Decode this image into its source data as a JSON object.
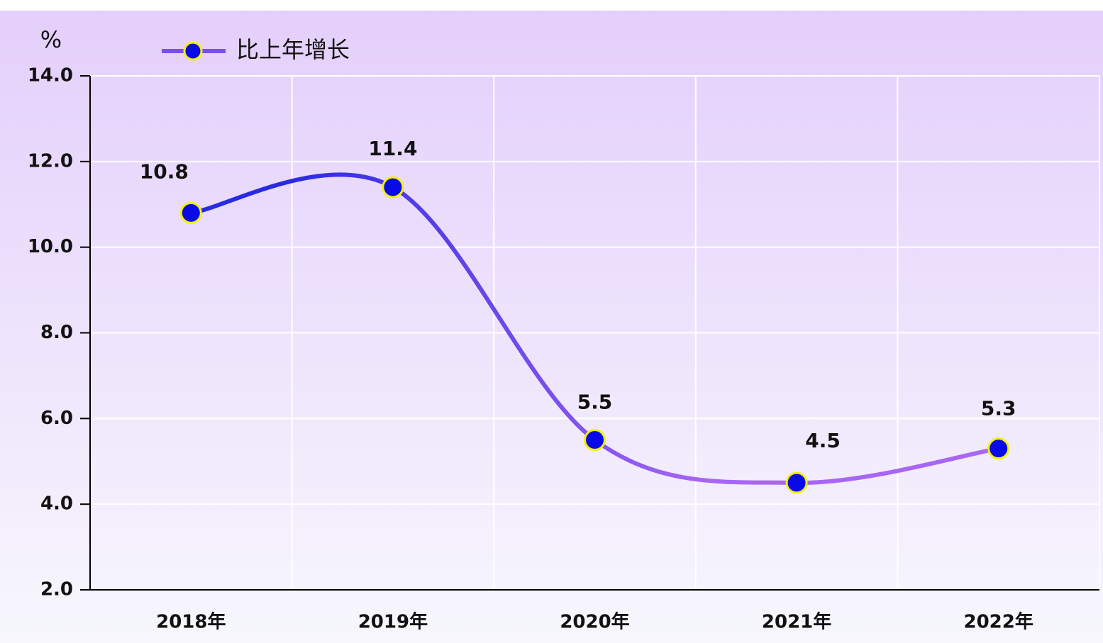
{
  "chart_data": {
    "type": "line",
    "y_unit": "%",
    "categories": [
      "2018年",
      "2019年",
      "2020年",
      "2021年",
      "2022年"
    ],
    "series": [
      {
        "name": "比上年增长",
        "color": "#7a4df0",
        "values": [
          10.8,
          11.4,
          5.5,
          4.5,
          5.3
        ]
      }
    ],
    "line_gradient": [
      "#2a2ae0",
      "#a866f5"
    ],
    "marker_color": "#0a0ae8",
    "marker_edge": "#f2f200",
    "ylim": [
      2,
      14
    ],
    "yticks": [
      {
        "value": 2,
        "label": "2.0"
      },
      {
        "value": 4,
        "label": "4.0"
      },
      {
        "value": 6,
        "label": "6.0"
      },
      {
        "value": 8,
        "label": "8.0"
      },
      {
        "value": 10,
        "label": "10.0"
      },
      {
        "value": 12,
        "label": "12.0"
      },
      {
        "value": 14,
        "label": "14.0"
      }
    ],
    "grid": true,
    "smooth": true
  }
}
